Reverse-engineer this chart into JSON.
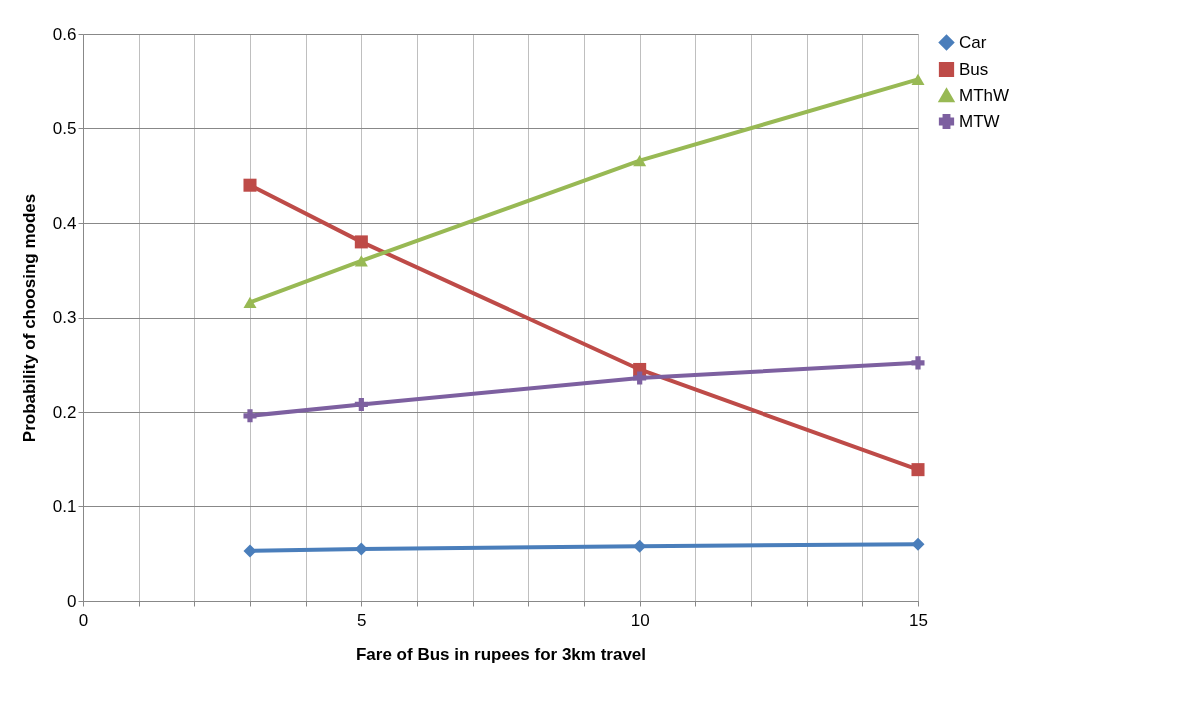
{
  "chart_data": {
    "type": "line",
    "xlabel": "Fare of Bus in rupees  for 3km travel",
    "ylabel": "Probability of choosing modes",
    "x": [
      3,
      5,
      10,
      15
    ],
    "series": [
      {
        "name": "Car",
        "color": "#4a7ebb",
        "marker": "diamond",
        "values": [
          0.053,
          0.055,
          0.058,
          0.06
        ]
      },
      {
        "name": "Bus",
        "color": "#be4b48",
        "marker": "square",
        "values": [
          0.44,
          0.38,
          0.245,
          0.139
        ]
      },
      {
        "name": "MThW",
        "color": "#98b954",
        "marker": "triangle",
        "values": [
          0.316,
          0.36,
          0.466,
          0.552
        ]
      },
      {
        "name": "MTW",
        "color": "#7d60a0",
        "marker": "cross",
        "values": [
          0.196,
          0.208,
          0.236,
          0.252
        ]
      }
    ],
    "xlim": [
      0,
      15
    ],
    "xticks": [
      0,
      {
        "value": 1,
        "label": null
      },
      {
        "value": 2,
        "label": null
      },
      {
        "value": 3,
        "label": null
      },
      {
        "value": 4,
        "label": null
      },
      5,
      {
        "value": 6,
        "label": null
      },
      {
        "value": 7,
        "label": null
      },
      {
        "value": 8,
        "label": null
      },
      {
        "value": 9,
        "label": null
      },
      10,
      {
        "value": 11,
        "label": null
      },
      {
        "value": 12,
        "label": null
      },
      {
        "value": 13,
        "label": null
      },
      {
        "value": 14,
        "label": null
      },
      15
    ],
    "ylim": [
      0,
      0.6
    ],
    "yticks": [
      0,
      0.1,
      0.2,
      0.3,
      0.4,
      0.5,
      0.6
    ],
    "grid": true,
    "legend": "right",
    "line_style": "solid"
  }
}
